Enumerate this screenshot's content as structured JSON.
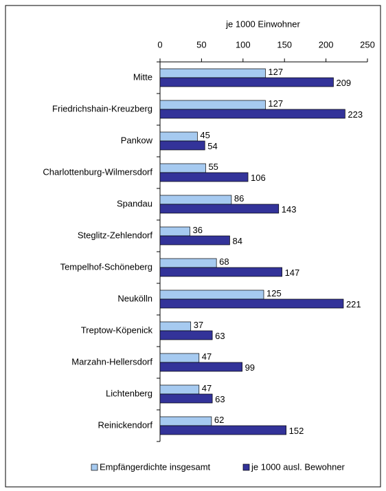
{
  "chart_data": {
    "type": "bar",
    "orientation": "horizontal",
    "x_label": "je 1000 Einwohner",
    "categories": [
      "Mitte",
      "Friedrichshain-Kreuzberg",
      "Pankow",
      "Charlottenburg-Wilmersdorf",
      "Spandau",
      "Steglitz-Zehlendorf",
      "Tempelhof-Schöneberg",
      "Neukölln",
      "Treptow-Köpenick",
      "Marzahn-Hellersdorf",
      "Lichtenberg",
      "Reinickendorf"
    ],
    "series": [
      {
        "name": "Empfängerdichte insgesamt",
        "color": "#a6caf0",
        "values": [
          127,
          127,
          45,
          55,
          86,
          36,
          68,
          125,
          37,
          47,
          47,
          62
        ]
      },
      {
        "name": "je 1000 ausl. Bewohner",
        "color": "#333399",
        "values": [
          209,
          223,
          54,
          106,
          143,
          84,
          147,
          221,
          63,
          99,
          63,
          152
        ]
      }
    ],
    "xlim": [
      0,
      250
    ],
    "xticks": [
      0,
      50,
      100,
      150,
      200,
      250
    ],
    "legend": "bottom"
  }
}
